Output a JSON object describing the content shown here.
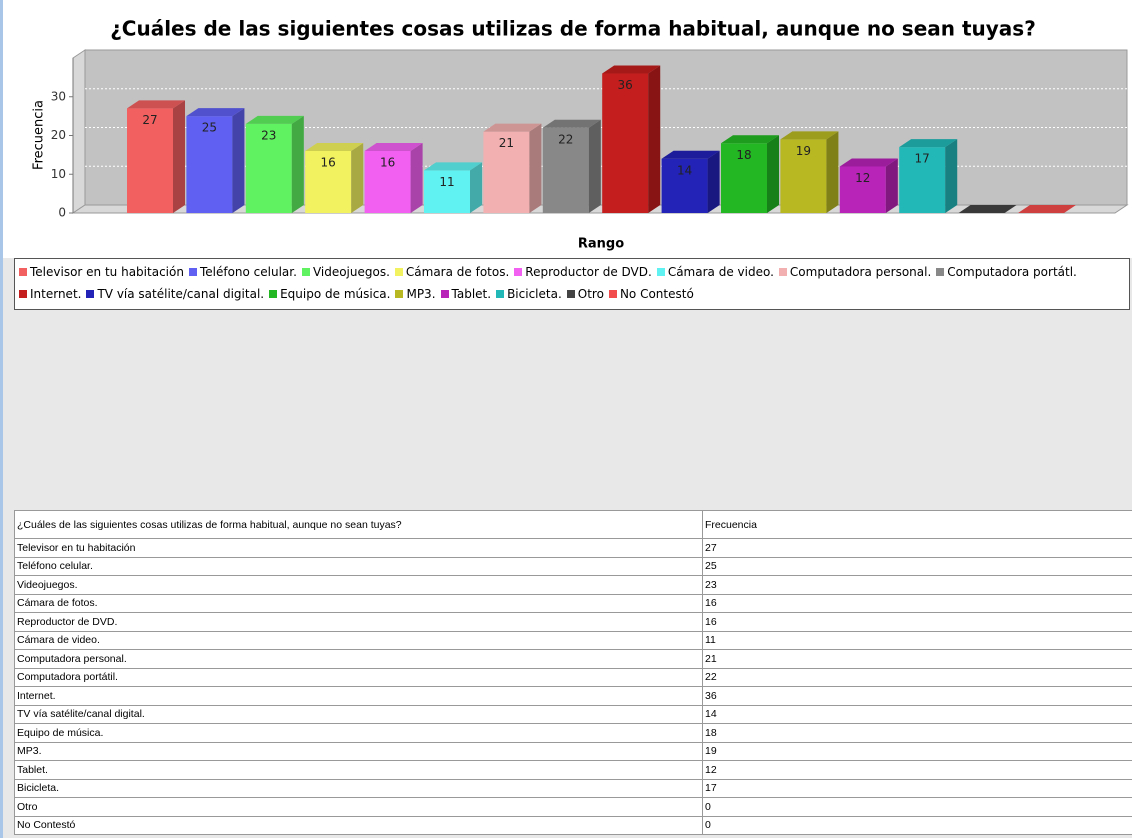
{
  "chart_data": {
    "type": "bar3d",
    "title": "¿Cuáles de las siguientes cosas utilizas de forma habitual, aunque no sean tuyas?",
    "y_label": "Frecuencia",
    "x_label": "Rango",
    "ylim": [
      0,
      40
    ],
    "yticks": [
      0,
      10,
      20,
      30
    ],
    "grid": true,
    "series": [
      {
        "name": "Televisor en tu habitación",
        "color": "#f26060",
        "values": [
          27
        ]
      },
      {
        "name": "Teléfono celular.",
        "color": "#6060f2",
        "values": [
          25
        ]
      },
      {
        "name": "Videojuegos.",
        "color": "#60f260",
        "values": [
          23
        ]
      },
      {
        "name": "Cámara de fotos.",
        "color": "#f2f260",
        "values": [
          16
        ]
      },
      {
        "name": "Reproductor de DVD.",
        "color": "#f260f2",
        "values": [
          16
        ]
      },
      {
        "name": "Cámara de video.",
        "color": "#60f2f2",
        "values": [
          11
        ]
      },
      {
        "name": "Computadora personal.",
        "color": "#f2b0b0",
        "values": [
          21
        ]
      },
      {
        "name": "Computadora portátl.",
        "color": "#888888",
        "values": [
          22
        ]
      },
      {
        "name": "Internet.",
        "color": "#c41e1e",
        "values": [
          36
        ]
      },
      {
        "name": "TV vía satélite/canal digital.",
        "color": "#2323b8",
        "values": [
          14
        ]
      },
      {
        "name": "Equipo de música.",
        "color": "#23b823",
        "values": [
          18
        ]
      },
      {
        "name": "MP3.",
        "color": "#b8b823",
        "values": [
          19
        ]
      },
      {
        "name": "Tablet.",
        "color": "#b823b8",
        "values": [
          12
        ]
      },
      {
        "name": "Bicicleta.",
        "color": "#23b8b8",
        "values": [
          17
        ]
      },
      {
        "name": "Otro",
        "color": "#444444",
        "values": [
          0
        ]
      },
      {
        "name": "No Contestó",
        "color": "#f24c4c",
        "values": [
          0
        ]
      }
    ]
  },
  "table": {
    "header": [
      "¿Cuáles de las siguientes cosas utilizas de forma habitual, aunque no sean tuyas?",
      "Frecuencia"
    ],
    "rows": [
      [
        "Televisor en tu habitación",
        27
      ],
      [
        "Teléfono celular.",
        25
      ],
      [
        "Videojuegos.",
        23
      ],
      [
        "Cámara de fotos.",
        16
      ],
      [
        "Reproductor de DVD.",
        16
      ],
      [
        "Cámara de video.",
        11
      ],
      [
        "Computadora personal.",
        21
      ],
      [
        "Computadora portátil.",
        22
      ],
      [
        "Internet.",
        36
      ],
      [
        "TV vía satélite/canal digital.",
        14
      ],
      [
        "Equipo de música.",
        18
      ],
      [
        "MP3.",
        19
      ],
      [
        "Tablet.",
        12
      ],
      [
        "Bicicleta.",
        17
      ],
      [
        "Otro",
        0
      ],
      [
        "No Contestó",
        0
      ]
    ]
  }
}
